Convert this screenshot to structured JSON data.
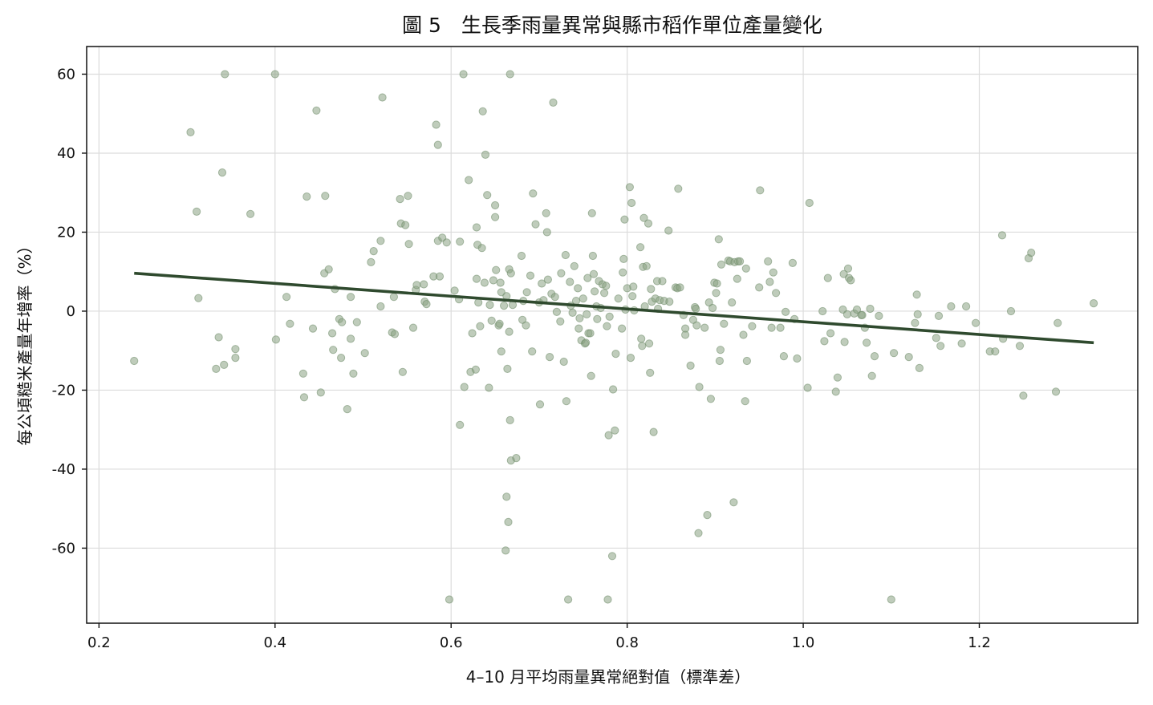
{
  "chart_data": {
    "type": "scatter",
    "title": "圖 5　生長季雨量異常與縣市稻作單位產量變化",
    "xlabel": "4–10 月平均雨量異常絕對值（標準差）",
    "ylabel": "每公頃糙米產量年增率（%）",
    "xlim": [
      0.186,
      1.38
    ],
    "ylim": [
      -79,
      67
    ],
    "x_ticks": [
      0.2,
      0.4,
      0.6,
      0.8,
      1.0,
      1.2
    ],
    "x_tick_labels": [
      "0.2",
      "0.4",
      "0.6",
      "0.8",
      "1.0",
      "1.2"
    ],
    "y_ticks": [
      60,
      40,
      20,
      0,
      -20,
      -40,
      -60
    ],
    "y_tick_labels": [
      "60",
      "40",
      "20",
      "0",
      "-20",
      "-40",
      "-60"
    ],
    "grid": true,
    "colors": {
      "points": "#8aa384",
      "point_edge": "#6e8a68",
      "trend": "#2f4a2e"
    },
    "trend_line": {
      "x": [
        0.24,
        1.33
      ],
      "y": [
        9.6,
        -8.0
      ]
    },
    "points": [
      [
        0.24,
        -12.6
      ],
      [
        0.304,
        45.3
      ],
      [
        0.311,
        25.2
      ],
      [
        0.313,
        3.3
      ],
      [
        0.333,
        -14.6
      ],
      [
        0.336,
        -6.6
      ],
      [
        0.34,
        35.1
      ],
      [
        0.342,
        -13.6
      ],
      [
        0.343,
        60
      ],
      [
        0.355,
        -9.6
      ],
      [
        0.355,
        -11.8
      ],
      [
        0.372,
        24.6
      ],
      [
        0.4,
        60
      ],
      [
        0.401,
        -7.2
      ],
      [
        0.413,
        3.6
      ],
      [
        0.417,
        -3.2
      ],
      [
        0.432,
        -15.8
      ],
      [
        0.433,
        -21.8
      ],
      [
        0.436,
        29
      ],
      [
        0.443,
        -4.4
      ],
      [
        0.447,
        50.8
      ],
      [
        0.452,
        -20.6
      ],
      [
        0.456,
        9.6
      ],
      [
        0.457,
        29.2
      ],
      [
        0.461,
        10.6
      ],
      [
        0.465,
        -5.6
      ],
      [
        0.466,
        -9.8
      ],
      [
        0.468,
        5.6
      ],
      [
        0.473,
        -2
      ],
      [
        0.475,
        -11.8
      ],
      [
        0.476,
        -2.8
      ],
      [
        0.482,
        -24.8
      ],
      [
        0.486,
        3.6
      ],
      [
        0.486,
        -7
      ],
      [
        0.489,
        -15.8
      ],
      [
        0.493,
        -2.8
      ],
      [
        0.502,
        -10.6
      ],
      [
        0.509,
        12.4
      ],
      [
        0.512,
        15.2
      ],
      [
        0.52,
        1.2
      ],
      [
        0.52,
        17.8
      ],
      [
        0.522,
        54.1
      ],
      [
        0.533,
        -5.4
      ],
      [
        0.535,
        3.6
      ],
      [
        0.536,
        -5.8
      ],
      [
        0.542,
        28.4
      ],
      [
        0.543,
        22.2
      ],
      [
        0.545,
        -15.4
      ],
      [
        0.548,
        21.8
      ],
      [
        0.551,
        29.2
      ],
      [
        0.552,
        17
      ],
      [
        0.557,
        -4.2
      ],
      [
        0.56,
        5.4
      ],
      [
        0.561,
        6.6
      ],
      [
        0.569,
        6.8
      ],
      [
        0.57,
        2.4
      ],
      [
        0.572,
        1.8
      ],
      [
        0.58,
        8.8
      ],
      [
        0.583,
        47.2
      ],
      [
        0.585,
        17.8
      ],
      [
        0.585,
        42.1
      ],
      [
        0.587,
        8.8
      ],
      [
        0.59,
        18.6
      ],
      [
        0.595,
        17.4
      ],
      [
        0.598,
        -73
      ],
      [
        0.604,
        5.2
      ],
      [
        0.609,
        3
      ],
      [
        0.61,
        -28.8
      ],
      [
        0.61,
        17.6
      ],
      [
        0.614,
        60
      ],
      [
        0.615,
        -19.2
      ],
      [
        0.62,
        33.2
      ],
      [
        0.622,
        -15.4
      ],
      [
        0.624,
        -5.6
      ],
      [
        0.628,
        -14.8
      ],
      [
        0.629,
        21.2
      ],
      [
        0.629,
        8.2
      ],
      [
        0.63,
        16.8
      ],
      [
        0.631,
        2.2
      ],
      [
        0.633,
        -3.8
      ],
      [
        0.635,
        16
      ],
      [
        0.636,
        50.6
      ],
      [
        0.638,
        7.2
      ],
      [
        0.639,
        39.6
      ],
      [
        0.641,
        29.4
      ],
      [
        0.643,
        -19.4
      ],
      [
        0.644,
        1.6
      ],
      [
        0.646,
        -2.4
      ],
      [
        0.648,
        7.8
      ],
      [
        0.65,
        23.8
      ],
      [
        0.65,
        26.8
      ],
      [
        0.651,
        10.4
      ],
      [
        0.654,
        -3.6
      ],
      [
        0.655,
        -3.2
      ],
      [
        0.656,
        7.2
      ],
      [
        0.657,
        -10.2
      ],
      [
        0.657,
        4.8
      ],
      [
        0.66,
        1.4
      ],
      [
        0.662,
        -60.6
      ],
      [
        0.663,
        -47
      ],
      [
        0.663,
        3.8
      ],
      [
        0.664,
        -14.6
      ],
      [
        0.665,
        -53.4
      ],
      [
        0.666,
        -5.2
      ],
      [
        0.666,
        10.6
      ],
      [
        0.667,
        60
      ],
      [
        0.667,
        -27.6
      ],
      [
        0.668,
        9.6
      ],
      [
        0.668,
        -37.8
      ],
      [
        0.67,
        1.6
      ],
      [
        0.674,
        -37.2
      ],
      [
        0.68,
        14
      ],
      [
        0.681,
        -2.2
      ],
      [
        0.682,
        2.6
      ],
      [
        0.685,
        -3.6
      ],
      [
        0.686,
        4.8
      ],
      [
        0.69,
        9
      ],
      [
        0.692,
        -10.2
      ],
      [
        0.693,
        29.8
      ],
      [
        0.696,
        22
      ],
      [
        0.7,
        2.2
      ],
      [
        0.701,
        -23.6
      ],
      [
        0.703,
        7
      ],
      [
        0.705,
        2.8
      ],
      [
        0.708,
        24.8
      ],
      [
        0.709,
        20
      ],
      [
        0.71,
        8
      ],
      [
        0.712,
        -11.6
      ],
      [
        0.714,
        4.4
      ],
      [
        0.716,
        52.8
      ],
      [
        0.718,
        3.6
      ],
      [
        0.72,
        -0.2
      ],
      [
        0.724,
        -2.6
      ],
      [
        0.725,
        9.6
      ],
      [
        0.728,
        -12.8
      ],
      [
        0.73,
        14.2
      ],
      [
        0.731,
        -22.8
      ],
      [
        0.733,
        -73
      ],
      [
        0.735,
        7.4
      ],
      [
        0.736,
        1.4
      ],
      [
        0.738,
        -0.4
      ],
      [
        0.74,
        11.4
      ],
      [
        0.742,
        2.6
      ],
      [
        0.744,
        5.8
      ],
      [
        0.745,
        -4.4
      ],
      [
        0.746,
        -1.8
      ],
      [
        0.748,
        -7.4
      ],
      [
        0.75,
        3.2
      ],
      [
        0.752,
        -8.2
      ],
      [
        0.753,
        -8
      ],
      [
        0.754,
        -0.8
      ],
      [
        0.755,
        8.4
      ],
      [
        0.756,
        -5.6
      ],
      [
        0.758,
        -5.6
      ],
      [
        0.759,
        -16.4
      ],
      [
        0.76,
        24.8
      ],
      [
        0.761,
        14
      ],
      [
        0.762,
        9.4
      ],
      [
        0.763,
        5
      ],
      [
        0.765,
        1.2
      ],
      [
        0.766,
        -2
      ],
      [
        0.768,
        7.6
      ],
      [
        0.77,
        0.8
      ],
      [
        0.772,
        6.8
      ],
      [
        0.774,
        4.6
      ],
      [
        0.776,
        6.4
      ],
      [
        0.777,
        -3.8
      ],
      [
        0.778,
        -73
      ],
      [
        0.779,
        -31.4
      ],
      [
        0.78,
        -1.4
      ],
      [
        0.783,
        -62
      ],
      [
        0.784,
        -19.8
      ],
      [
        0.786,
        -30.2
      ],
      [
        0.787,
        -10.8
      ],
      [
        0.79,
        3.2
      ],
      [
        0.794,
        -4.4
      ],
      [
        0.795,
        9.8
      ],
      [
        0.796,
        13.2
      ],
      [
        0.797,
        23.2
      ],
      [
        0.798,
        0.4
      ],
      [
        0.8,
        5.8
      ],
      [
        0.803,
        31.4
      ],
      [
        0.804,
        -11.8
      ],
      [
        0.805,
        27.4
      ],
      [
        0.806,
        3.8
      ],
      [
        0.807,
        6.2
      ],
      [
        0.808,
        0.2
      ],
      [
        0.815,
        16.2
      ],
      [
        0.816,
        -7
      ],
      [
        0.817,
        -8.8
      ],
      [
        0.818,
        11.2
      ],
      [
        0.819,
        23.6
      ],
      [
        0.82,
        1.2
      ],
      [
        0.822,
        11.4
      ],
      [
        0.824,
        22.2
      ],
      [
        0.825,
        -8.2
      ],
      [
        0.826,
        -15.6
      ],
      [
        0.827,
        5.6
      ],
      [
        0.828,
        2.4
      ],
      [
        0.83,
        -30.6
      ],
      [
        0.832,
        3.2
      ],
      [
        0.834,
        7.6
      ],
      [
        0.835,
        0.6
      ],
      [
        0.837,
        2.8
      ],
      [
        0.84,
        7.6
      ],
      [
        0.842,
        2.6
      ],
      [
        0.847,
        20.4
      ],
      [
        0.848,
        2.4
      ],
      [
        0.855,
        6
      ],
      [
        0.857,
        5.8
      ],
      [
        0.858,
        31
      ],
      [
        0.86,
        6
      ],
      [
        0.864,
        -1
      ],
      [
        0.866,
        -4.4
      ],
      [
        0.866,
        -6
      ],
      [
        0.872,
        -13.8
      ],
      [
        0.875,
        -2.2
      ],
      [
        0.877,
        1
      ],
      [
        0.878,
        0.6
      ],
      [
        0.879,
        -3.6
      ],
      [
        0.881,
        -56.2
      ],
      [
        0.882,
        -19.2
      ],
      [
        0.888,
        -4.2
      ],
      [
        0.891,
        -51.6
      ],
      [
        0.893,
        2.2
      ],
      [
        0.895,
        -22.2
      ],
      [
        0.897,
        0.8
      ],
      [
        0.899,
        7.2
      ],
      [
        0.901,
        4.6
      ],
      [
        0.902,
        7
      ],
      [
        0.904,
        18.2
      ],
      [
        0.905,
        -12.6
      ],
      [
        0.906,
        -9.8
      ],
      [
        0.907,
        11.8
      ],
      [
        0.91,
        -3.2
      ],
      [
        0.915,
        12.8
      ],
      [
        0.917,
        12.6
      ],
      [
        0.919,
        2.2
      ],
      [
        0.921,
        -48.4
      ],
      [
        0.922,
        12.4
      ],
      [
        0.925,
        8.2
      ],
      [
        0.926,
        12.6
      ],
      [
        0.928,
        12.6
      ],
      [
        0.932,
        -6
      ],
      [
        0.934,
        -22.8
      ],
      [
        0.935,
        10.8
      ],
      [
        0.936,
        -12.6
      ],
      [
        0.942,
        -3.8
      ],
      [
        0.95,
        6
      ],
      [
        0.951,
        30.6
      ],
      [
        0.96,
        12.6
      ],
      [
        0.962,
        7.4
      ],
      [
        0.964,
        -4.2
      ],
      [
        0.966,
        9.8
      ],
      [
        0.969,
        4.6
      ],
      [
        0.974,
        -4.2
      ],
      [
        0.978,
        -11.4
      ],
      [
        0.98,
        -0.2
      ],
      [
        0.988,
        12.2
      ],
      [
        0.99,
        -2
      ],
      [
        0.993,
        -12
      ],
      [
        1.005,
        -19.4
      ],
      [
        1.007,
        27.4
      ],
      [
        1.022,
        0
      ],
      [
        1.024,
        -7.6
      ],
      [
        1.028,
        8.4
      ],
      [
        1.031,
        -5.6
      ],
      [
        1.037,
        -20.4
      ],
      [
        1.039,
        -16.8
      ],
      [
        1.045,
        0.4
      ],
      [
        1.046,
        9.4
      ],
      [
        1.047,
        -7.8
      ],
      [
        1.05,
        -0.8
      ],
      [
        1.051,
        10.8
      ],
      [
        1.052,
        8.4
      ],
      [
        1.054,
        7.8
      ],
      [
        1.058,
        -0.6
      ],
      [
        1.061,
        0.4
      ],
      [
        1.066,
        -1
      ],
      [
        1.067,
        -1
      ],
      [
        1.07,
        -4.2
      ],
      [
        1.072,
        -8
      ],
      [
        1.076,
        0.6
      ],
      [
        1.078,
        -16.4
      ],
      [
        1.081,
        -11.4
      ],
      [
        1.086,
        -1.2
      ],
      [
        1.1,
        -73
      ],
      [
        1.103,
        -10.6
      ],
      [
        1.12,
        -11.6
      ],
      [
        1.127,
        -3
      ],
      [
        1.129,
        4.2
      ],
      [
        1.13,
        -0.8
      ],
      [
        1.132,
        -14.4
      ],
      [
        1.151,
        -6.8
      ],
      [
        1.154,
        -1.2
      ],
      [
        1.156,
        -8.8
      ],
      [
        1.168,
        1.2
      ],
      [
        1.18,
        -8.2
      ],
      [
        1.185,
        1.2
      ],
      [
        1.196,
        -3
      ],
      [
        1.212,
        -10.2
      ],
      [
        1.218,
        -10.2
      ],
      [
        1.226,
        19.2
      ],
      [
        1.227,
        -7
      ],
      [
        1.236,
        0
      ],
      [
        1.246,
        -8.8
      ],
      [
        1.25,
        -21.4
      ],
      [
        1.256,
        13.4
      ],
      [
        1.259,
        14.8
      ],
      [
        1.287,
        -20.4
      ],
      [
        1.289,
        -3
      ],
      [
        1.33,
        2
      ]
    ]
  }
}
